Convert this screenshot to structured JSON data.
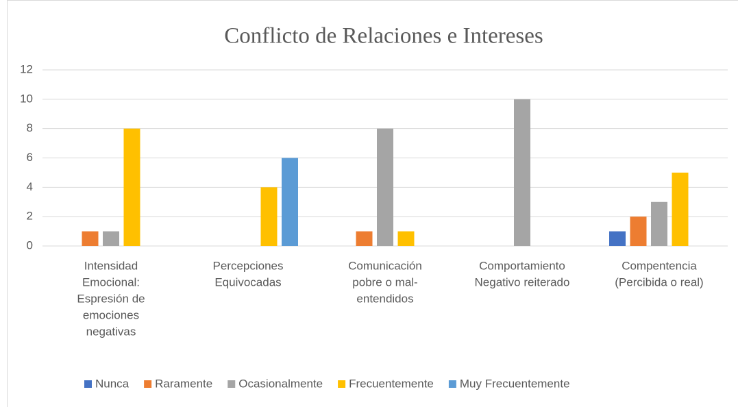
{
  "chart_data": {
    "type": "bar",
    "title": "Conflicto de Relaciones e Intereses",
    "categories": [
      [
        "Intensidad",
        "Emocional:",
        "Espresión de",
        "emociones",
        "negativas"
      ],
      [
        "Percepciones",
        "Equivocadas"
      ],
      [
        "Comunicación",
        "pobre o mal-",
        "entendidos"
      ],
      [
        "Comportamiento",
        "Negativo reiterado"
      ],
      [
        "Compentencia",
        "(Percibida o real)"
      ]
    ],
    "series": [
      {
        "name": "Nunca",
        "color": "#4472c4",
        "values": [
          0,
          0,
          0,
          0,
          1
        ]
      },
      {
        "name": "Raramente",
        "color": "#ed7d31",
        "values": [
          1,
          0,
          1,
          0,
          2
        ]
      },
      {
        "name": "Ocasionalmente",
        "color": "#a5a5a5",
        "values": [
          1,
          0,
          8,
          10,
          3
        ]
      },
      {
        "name": "Frecuentemente",
        "color": "#ffc000",
        "values": [
          8,
          4,
          1,
          0,
          5
        ]
      },
      {
        "name": "Muy Frecuentemente",
        "color": "#5b9bd5",
        "values": [
          0,
          6,
          0,
          0,
          0
        ]
      }
    ],
    "ylim": [
      0,
      12
    ],
    "yticks": [
      0,
      2,
      4,
      6,
      8,
      10,
      12
    ],
    "grid": true,
    "legend": "bottom"
  }
}
